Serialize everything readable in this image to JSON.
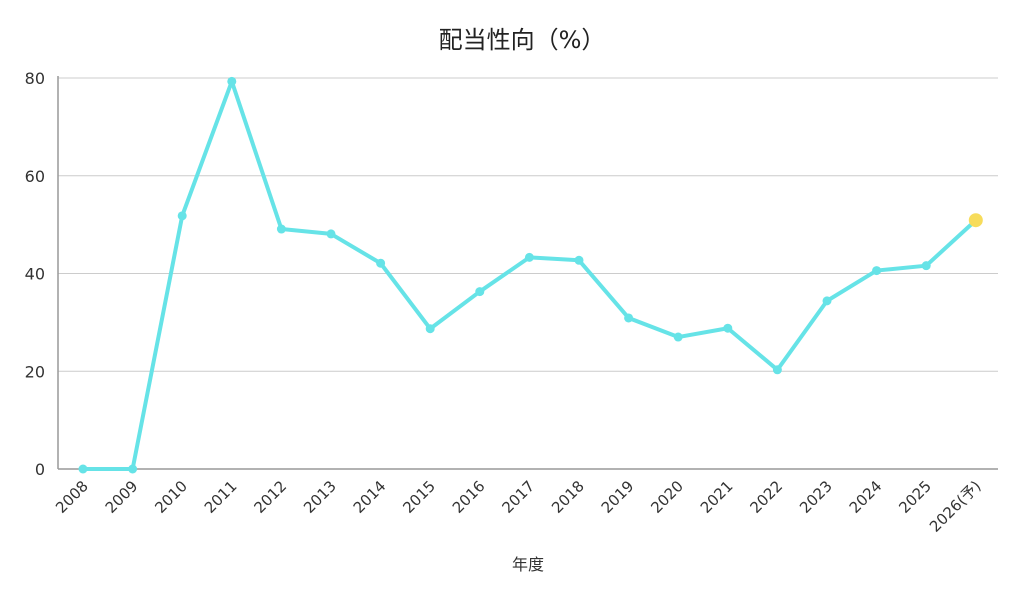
{
  "chart_data": {
    "type": "line",
    "title": "配当性向（%）",
    "xlabel": "年度",
    "ylabel": "",
    "ylim": [
      0,
      80
    ],
    "yticks": [
      0,
      20,
      40,
      60,
      80
    ],
    "grid": true,
    "categories": [
      "2008",
      "2009",
      "2010",
      "2011",
      "2012",
      "2013",
      "2014",
      "2015",
      "2016",
      "2017",
      "2018",
      "2019",
      "2020",
      "2021",
      "2022",
      "2023",
      "2024",
      "2025",
      "2026(予)"
    ],
    "series": [
      {
        "values": [
          0,
          0,
          51.8,
          79.3,
          49.1,
          48.1,
          42.1,
          28.7,
          36.3,
          43.3,
          42.7,
          30.9,
          27.0,
          28.8,
          20.3,
          34.4,
          40.6,
          41.6,
          50.9
        ],
        "color": "#66e3e7",
        "forecast_color": "#f7dc5b"
      }
    ]
  }
}
